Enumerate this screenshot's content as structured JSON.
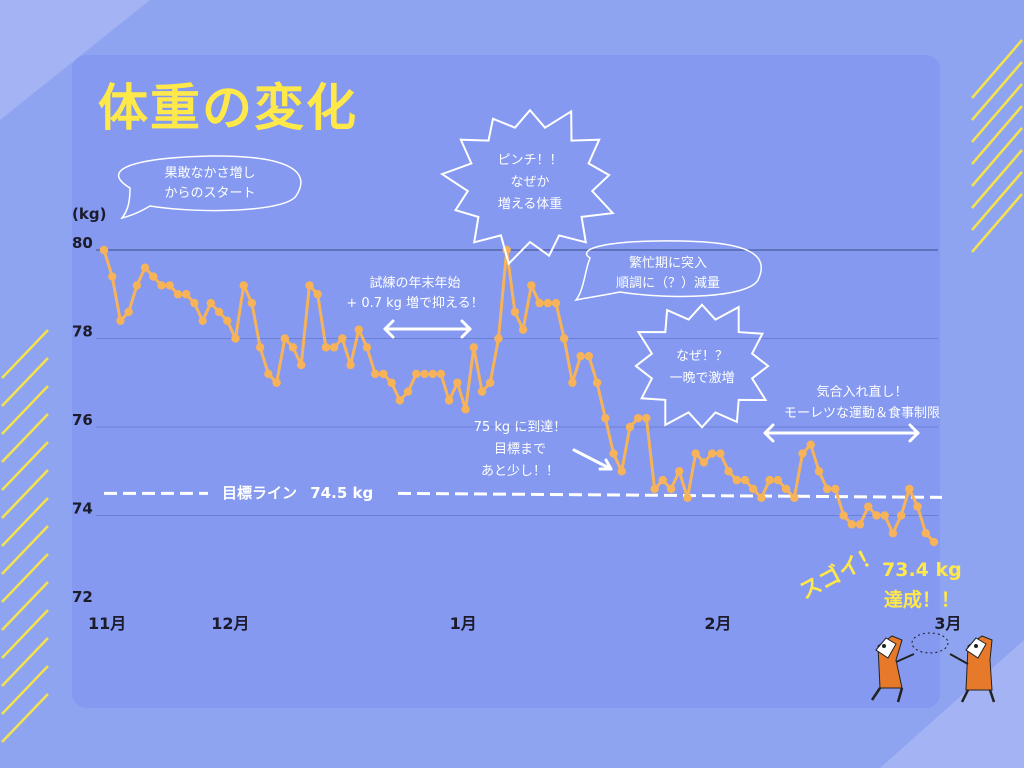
{
  "title": "体重の変化",
  "chart_data": {
    "type": "line",
    "ylabel": "(kg)",
    "ylim": [
      72,
      80
    ],
    "yticks": [
      72,
      74,
      76,
      78,
      80
    ],
    "xticks": [
      {
        "label": "11月",
        "day": 0
      },
      {
        "label": "12月",
        "day": 15
      },
      {
        "label": "1月",
        "day": 44
      },
      {
        "label": "2月",
        "day": 75
      },
      {
        "label": "3月",
        "day": 103
      }
    ],
    "goal": {
      "label": "目標ライン",
      "value": 74.5,
      "value_label": "74.5 kg"
    },
    "series": [
      {
        "values": [
          80.0,
          79.4,
          78.4,
          78.6,
          79.2,
          79.6,
          79.4,
          79.2,
          79.2,
          79.0,
          79.0,
          78.8,
          78.4,
          78.8,
          78.6,
          78.4,
          78.0,
          79.2,
          78.8,
          77.8,
          77.2,
          77.0,
          78.0,
          77.8,
          77.4,
          79.2,
          79.0,
          77.8,
          77.8,
          78.0,
          77.4,
          78.2,
          77.8,
          77.2,
          77.2,
          77.0,
          76.6,
          76.8,
          77.2,
          77.2,
          77.2,
          77.2,
          76.6,
          77.0,
          76.4,
          77.8,
          76.8,
          77.0,
          78.0,
          80.0,
          78.6,
          78.2,
          79.2,
          78.8,
          78.8,
          78.8,
          78.0,
          77.0,
          77.6,
          77.6,
          77.0,
          76.2,
          75.4,
          75.0,
          76.0,
          76.2,
          76.2,
          74.6,
          74.8,
          74.6,
          75.0,
          74.4,
          75.4,
          75.2,
          75.4,
          75.4,
          75.0,
          74.8,
          74.8,
          74.6,
          74.4,
          74.8,
          74.8,
          74.6,
          74.4,
          75.4,
          75.6,
          75.0,
          74.6,
          74.6,
          74.0,
          73.8,
          73.8,
          74.2,
          74.0,
          74.0,
          73.6,
          74.0,
          74.6,
          74.2,
          73.6,
          73.4
        ]
      }
    ]
  },
  "annotations": {
    "start": "果敢なかさ増し\nからのスタート",
    "newyear": "試練の年末年始\n+ 0.7 kg 増で抑える！",
    "pinch": "ピンチ！！\nなぜか\n増える体重",
    "busy": "繁忙期に突入\n順調に（？）減量",
    "naze": "なぜ！？\n一晩で激増",
    "reached": "75 kg に到達！\n目標まで\nあと少し！！",
    "restart": "気合入れ直し！\nモーレツな運動＆食事制限",
    "sugoi": "スゴイ！",
    "achieved_value": "73.4 kg",
    "achieved_text": "達成！！"
  },
  "colors": {
    "background": "#8fa4f0",
    "card": "#8499ef",
    "line": "#f7b35a",
    "accent": "#ffe84a",
    "text": "#ffffff",
    "stripes": "#f6e24a"
  }
}
